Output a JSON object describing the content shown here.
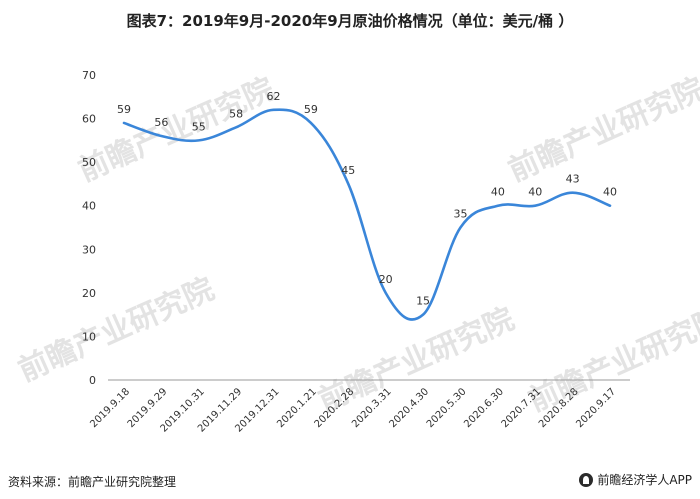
{
  "title": "图表7：2019年9月-2020年9月原油价格情况（单位：美元/桶 ）",
  "source": "资料来源：前瞻产业研究院整理",
  "brand": "前瞻经济学人APP",
  "watermark": "前瞻产业研究院",
  "colors": {
    "line": "#3a86d9",
    "axis": "#999999",
    "text": "#333333"
  },
  "chart_data": {
    "type": "line",
    "categories": [
      "2019.9.18",
      "2019.9.29",
      "2019.10.31",
      "2019.11.29",
      "2019.12.31",
      "2020.1.21",
      "2020.2.28",
      "2020.3.31",
      "2020.4.30",
      "2020.5.30",
      "2020.6.30",
      "2020.7.31",
      "2020.8.28",
      "2020.9.17"
    ],
    "series": [
      {
        "values": [
          59,
          56,
          55,
          58,
          62,
          59,
          45,
          20,
          15,
          35,
          40,
          40,
          43,
          40
        ]
      }
    ],
    "ylim": [
      0,
      70
    ],
    "yticks": [
      0,
      10,
      20,
      30,
      40,
      50,
      60,
      70
    ],
    "grid": false,
    "legend": "none",
    "xlabel": "",
    "ylabel": ""
  }
}
